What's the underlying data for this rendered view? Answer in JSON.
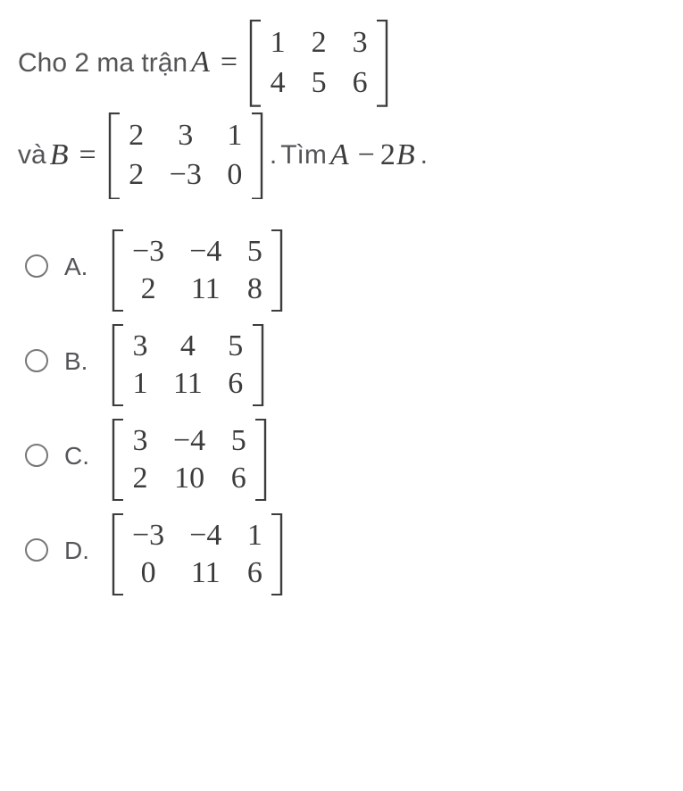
{
  "question": {
    "line1_prefix": "Cho 2 ma trận ",
    "var_A": "A",
    "eq": "=",
    "matrix_A": {
      "rows": 2,
      "cols": 3,
      "cells": [
        "1",
        "2",
        "3",
        "4",
        "5",
        "6"
      ],
      "cell_gap_col": 28,
      "font_size": 34,
      "bracket_color": "#3c3c3c"
    },
    "line2_prefix": "và ",
    "var_B": "B",
    "matrix_B": {
      "rows": 2,
      "cols": 3,
      "cells": [
        "2",
        "3",
        "1",
        "2",
        "−3",
        "0"
      ],
      "cell_gap_col": 28,
      "font_size": 34,
      "bracket_color": "#3c3c3c"
    },
    "after_B_period": ".",
    "find_text": " Tìm ",
    "expr_A": "A",
    "minus": "−",
    "twoB": "2",
    "expr_Bvar": "B",
    "final_period": "."
  },
  "options": [
    {
      "label": "A.",
      "matrix": {
        "rows": 2,
        "cols": 3,
        "cells": [
          "−3",
          "−4",
          "5",
          "2",
          "11",
          "8"
        ]
      }
    },
    {
      "label": "B.",
      "matrix": {
        "rows": 2,
        "cols": 3,
        "cells": [
          "3",
          "4",
          "5",
          "1",
          "11",
          "6"
        ]
      }
    },
    {
      "label": "C.",
      "matrix": {
        "rows": 2,
        "cols": 3,
        "cells": [
          "3",
          "−4",
          "5",
          "2",
          "10",
          "6"
        ]
      }
    },
    {
      "label": "D.",
      "matrix": {
        "rows": 2,
        "cols": 3,
        "cells": [
          "−3",
          "−4",
          "1",
          "0",
          "11",
          "6"
        ]
      }
    }
  ],
  "style": {
    "text_color": "#555558",
    "math_color": "#3c3c3c",
    "radio_border": "#777777",
    "background": "#ffffff"
  }
}
